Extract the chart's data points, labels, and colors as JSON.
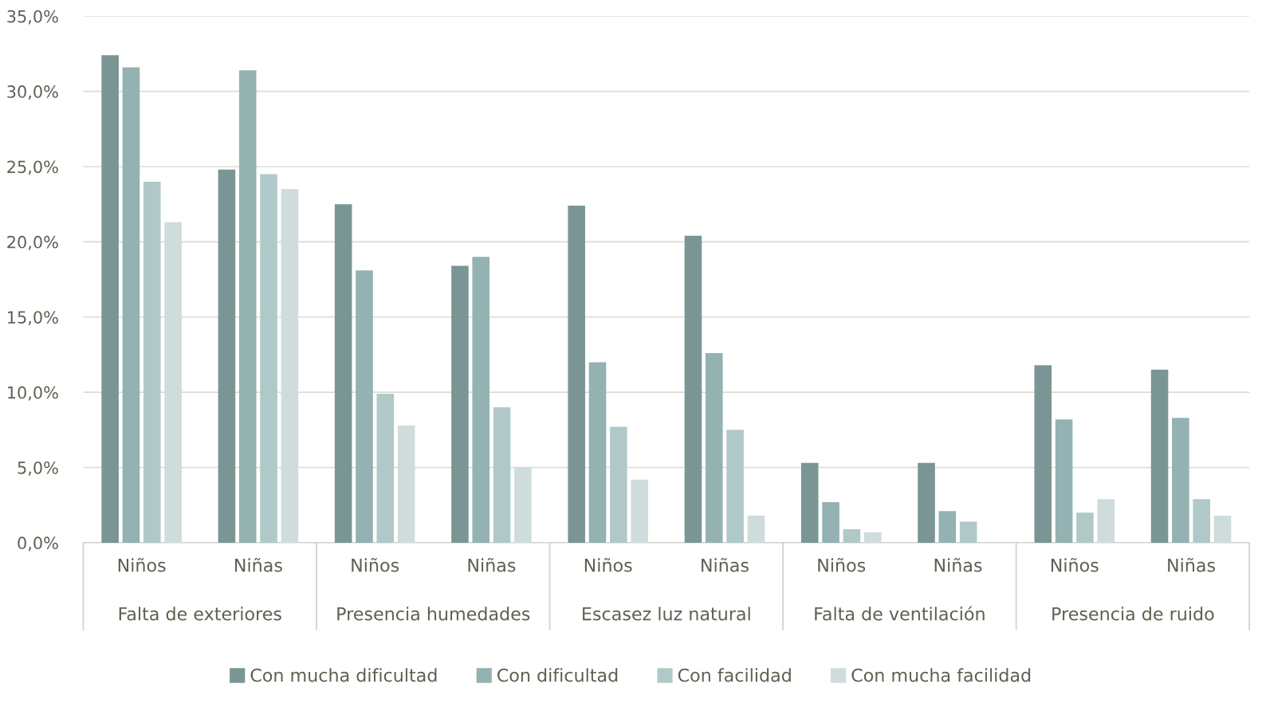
{
  "chart_data": {
    "type": "bar",
    "categories": [
      "Niños",
      "Niñas",
      "Niños",
      "Niñas",
      "Niños",
      "Niñas",
      "Niños",
      "Niñas",
      "Niños",
      "Niñas"
    ],
    "annotations": [
      "Falta de exteriores",
      "Presencia humedades",
      "Escasez luz natural",
      "Falta de ventilación",
      "Presencia de ruido"
    ],
    "series": [
      {
        "name": "Con mucha dificultad",
        "color": "#7a9694",
        "values": [
          32.4,
          24.8,
          22.5,
          18.4,
          22.4,
          20.4,
          5.3,
          5.3,
          11.8,
          11.5
        ]
      },
      {
        "name": "Con dificultad",
        "color": "#93b2b1",
        "values": [
          31.6,
          31.4,
          18.1,
          19.0,
          12.0,
          12.6,
          2.7,
          2.1,
          8.2,
          8.3
        ]
      },
      {
        "name": "Con facilidad",
        "color": "#b0c9c8",
        "values": [
          24.0,
          24.5,
          9.9,
          9.0,
          7.7,
          7.5,
          0.9,
          1.4,
          2.0,
          2.9
        ]
      },
      {
        "name": "Con mucha facilidad",
        "color": "#cedcdc",
        "values": [
          21.3,
          23.5,
          7.8,
          5.0,
          4.2,
          1.8,
          0.7,
          null,
          2.9,
          1.8
        ]
      }
    ],
    "ylim": [
      0,
      35
    ],
    "yticks": [
      {
        "value": 0,
        "label": "0,0%"
      },
      {
        "value": 5,
        "label": "5,0%"
      },
      {
        "value": 10,
        "label": "10,0%"
      },
      {
        "value": 15,
        "label": "15,0%"
      },
      {
        "value": 20,
        "label": "20,0%"
      },
      {
        "value": 25,
        "label": "25,0%"
      },
      {
        "value": 30,
        "label": "30,0%"
      },
      {
        "value": 35,
        "label": "35,0%"
      }
    ],
    "grid": "y",
    "legend": "bottom"
  }
}
